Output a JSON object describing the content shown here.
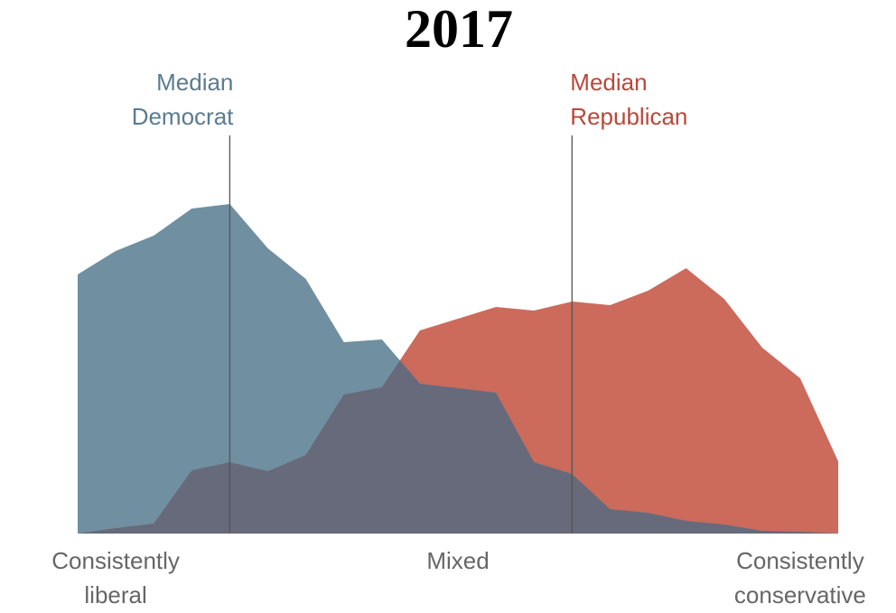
{
  "chart_data": {
    "type": "area",
    "title": "2017",
    "x": [
      0,
      1,
      2,
      3,
      4,
      5,
      6,
      7,
      8,
      9,
      10,
      11,
      12,
      13,
      14,
      15,
      16,
      17,
      18,
      19,
      20
    ],
    "xlim": [
      0,
      20
    ],
    "xticks": [
      {
        "value": 1,
        "label": "Consistently liberal"
      },
      {
        "value": 10,
        "label": "Mixed"
      },
      {
        "value": 19,
        "label": "Consistently conservative"
      }
    ],
    "ylim": [
      0,
      8
    ],
    "series": [
      {
        "name": "Republicans",
        "color": "#cc6a5c",
        "values": [
          0,
          0.12,
          0.22,
          1.4,
          1.58,
          1.38,
          1.74,
          3.08,
          3.24,
          4.5,
          4.76,
          5.02,
          4.94,
          5.14,
          5.06,
          5.38,
          5.88,
          5.2,
          4.12,
          3.44,
          1.6
        ]
      },
      {
        "name": "Democrats",
        "color": "#708fa1",
        "values": [
          5.74,
          6.26,
          6.6,
          7.2,
          7.3,
          6.32,
          5.64,
          4.24,
          4.3,
          3.32,
          3.22,
          3.12,
          1.58,
          1.32,
          0.54,
          0.46,
          0.28,
          0.2,
          0.06,
          0.04,
          0
        ]
      }
    ],
    "overlap_color": "#666a7a",
    "medians": [
      {
        "label": "Median Democrat",
        "x": 4,
        "color": "#5b7b91",
        "align": "right"
      },
      {
        "label": "Median Republican",
        "x": 13,
        "color": "#b8483b",
        "align": "left"
      }
    ]
  }
}
